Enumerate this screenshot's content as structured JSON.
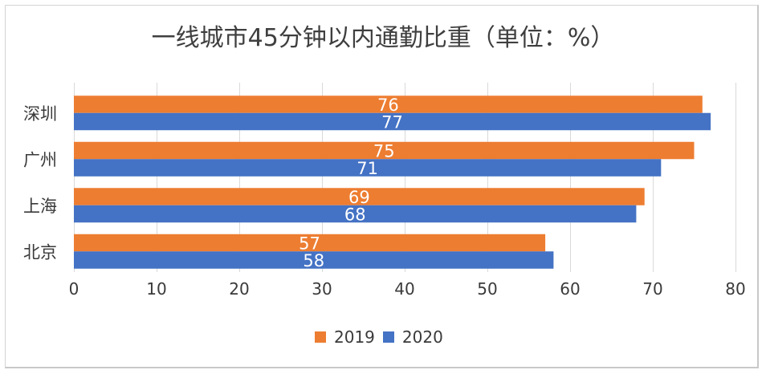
{
  "chart_data": {
    "type": "bar",
    "orientation": "horizontal",
    "title": "一线城市45分钟以内通勤比重（单位：%）",
    "categories": [
      "深圳",
      "广州",
      "上海",
      "北京"
    ],
    "series": [
      {
        "name": "2019",
        "color": "#ED7D31",
        "values": [
          76,
          75,
          69,
          57
        ]
      },
      {
        "name": "2020",
        "color": "#4472C4",
        "values": [
          77,
          71,
          68,
          58
        ]
      }
    ],
    "xlim": [
      0,
      80
    ],
    "xticks": [
      0,
      10,
      20,
      30,
      40,
      50,
      60,
      70,
      80
    ],
    "xlabel": "",
    "ylabel": "",
    "grid": true,
    "legend_position": "bottom",
    "data_labels": "inside-center"
  }
}
